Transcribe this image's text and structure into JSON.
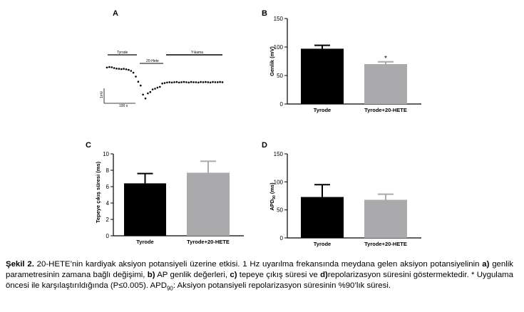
{
  "panels": {
    "a": "A",
    "b": "B",
    "c": "C",
    "d": "D"
  },
  "trace": {
    "labels": {
      "tyrode": "Tyrode",
      "hete": "20-Hete",
      "wash": "Yıkama"
    },
    "scale_y": "1mV",
    "scale_x": "100 s"
  },
  "chart_data": [
    {
      "panel": "A",
      "type": "scatter",
      "description_free": true,
      "x": [
        0,
        10,
        20,
        30,
        40,
        50,
        60,
        70,
        80,
        90,
        100,
        110,
        120,
        130,
        140,
        150,
        160,
        170,
        180,
        190,
        200,
        210,
        220,
        230,
        240,
        250,
        260,
        270,
        280,
        290,
        300,
        310,
        320,
        330,
        340,
        350,
        360,
        370,
        380,
        390,
        400,
        410,
        420,
        430,
        440,
        450,
        460,
        470,
        480
      ],
      "y": [
        0.0,
        0.02,
        0.01,
        -0.02,
        -0.04,
        -0.05,
        -0.06,
        -0.05,
        -0.07,
        -0.09,
        -0.13,
        -0.2,
        -0.35,
        -0.55,
        -0.7,
        -1.05,
        -1.2,
        -1.0,
        -0.95,
        -0.85,
        -0.82,
        -0.78,
        -0.75,
        -0.62,
        -0.6,
        -0.58,
        -0.57,
        -0.58,
        -0.57,
        -0.56,
        -0.58,
        -0.57,
        -0.56,
        -0.57,
        -0.58,
        -0.56,
        -0.57,
        -0.57,
        -0.58,
        -0.56,
        -0.57,
        -0.56,
        -0.57,
        -0.58,
        -0.56,
        -0.57,
        -0.57,
        -0.56,
        -0.57
      ]
    },
    {
      "panel": "B",
      "type": "bar",
      "categories": [
        "Tyrode",
        "Tyrode+20-HETE"
      ],
      "values": [
        97,
        70
      ],
      "errors": [
        6,
        4
      ],
      "colors": [
        "#000000",
        "#aaaaac"
      ],
      "ylabel": "Genlik (mV)",
      "ylim": [
        0,
        150
      ],
      "yticks": [
        0,
        50,
        100,
        150
      ],
      "annotation": "*",
      "annotation_bar": 1
    },
    {
      "panel": "C",
      "type": "bar",
      "categories": [
        "Tyrode",
        "Tyrode+20-HETE"
      ],
      "values": [
        6.4,
        7.7
      ],
      "errors": [
        1.2,
        1.4
      ],
      "colors": [
        "#000000",
        "#aaaaac"
      ],
      "ylabel": "Tepeye çıkış süresi (ms)",
      "ylim": [
        0,
        10
      ],
      "yticks": [
        0,
        2,
        4,
        6,
        8,
        10
      ]
    },
    {
      "panel": "D",
      "type": "bar",
      "categories": [
        "Tyrode",
        "Tyrode+20-HETE"
      ],
      "values": [
        73,
        68
      ],
      "errors": [
        22,
        10
      ],
      "colors": [
        "#000000",
        "#aaaaac"
      ],
      "ylabel": "APD",
      "ylabel_sub": "90",
      "ylabel_unit": " (ms)",
      "ylim": [
        0,
        150
      ],
      "yticks": [
        0,
        50,
        100,
        150
      ]
    }
  ],
  "caption": {
    "label": "Şekil 2.",
    "t1": " 20-HETE’nin kardiyak aksiyon potansiyeli üzerine etkisi. 1 Hz uyarılma frekansında meydana gelen aksiyon potansiyelinin ",
    "a": "a)",
    "t2": " genlik parametresinin zamana bağlı değişimi, ",
    "b": "b)",
    "t3": " AP genlik değerleri, ",
    "c": "c)",
    "t4": " tepeye çıkış süresi ve ",
    "d": "d)",
    "t5": "repolarizasyon süresini göstermektedir. * Uygulama öncesi ile karşılaştırıldığında (P≤0.005). APD",
    "sub": "90",
    "t6": ": Aksiyon potansiyeli repolarizasyon süresinin %90’lık süresi."
  }
}
